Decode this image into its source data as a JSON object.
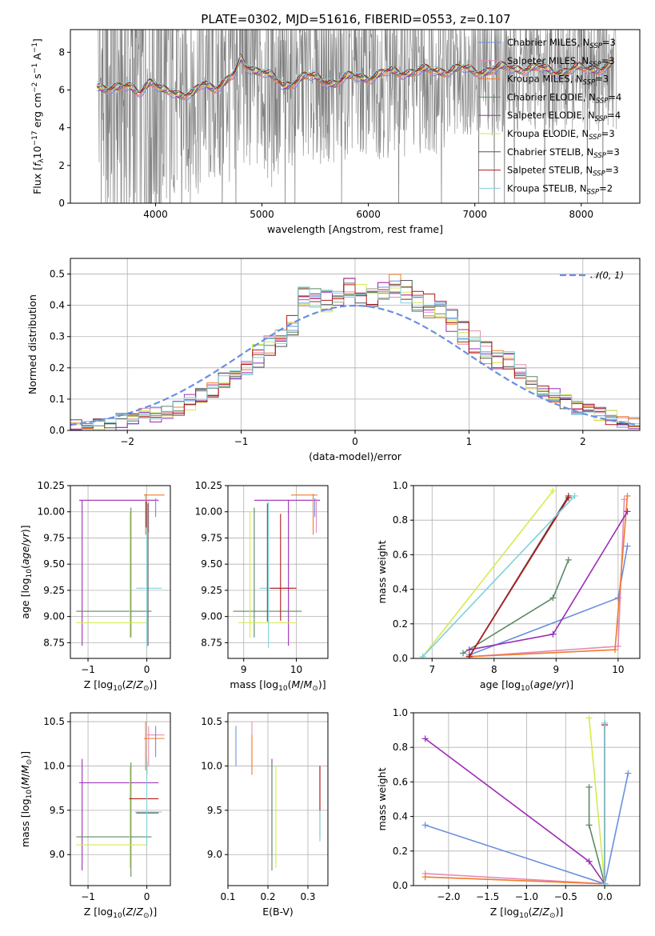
{
  "colors": {
    "Chabrier MILES": "#6a8fe0",
    "Salpeter MILES": "#e68bb7",
    "Kroupa MILES": "#f07b2a",
    "Chabrier ELODIE": "#5b8a64",
    "Salpeter ELODIE": "#9b2cb3",
    "Kroupa ELODIE": "#d6ea4e",
    "Chabrier STELIB": "#555555",
    "Salpeter STELIB": "#b21818",
    "Kroupa STELIB": "#7fd0da",
    "data": "#808080",
    "normal": "#6a8fe0"
  },
  "chart_data": [
    {
      "id": "spectrum",
      "type": "line",
      "title": "PLATE=0302, MJD=51616, FIBERID=0553, z=0.107",
      "xlabel": "wavelength [Angstrom, rest frame]",
      "ylabel": "Flux [f_λ 10^-17 erg cm^-2 s^-1 A^-1]",
      "xlim": [
        3200,
        8550
      ],
      "ylim": [
        0,
        9.2
      ],
      "xticks": [
        "4000",
        "5000",
        "6000",
        "7000",
        "8000"
      ],
      "yticks": [
        "0",
        "2",
        "4",
        "6",
        "8"
      ],
      "grid": false,
      "legend_position": "top-right",
      "legend": [
        {
          "label": "Chabrier MILES, N",
          "sub": "SSP",
          "eq": "=3"
        },
        {
          "label": "Salpeter MILES, N",
          "sub": "SSP",
          "eq": "=3"
        },
        {
          "label": "Kroupa MILES, N",
          "sub": "SSP",
          "eq": "=3"
        },
        {
          "label": "Chabrier ELODIE, N",
          "sub": "SSP",
          "eq": "=4"
        },
        {
          "label": "Salpeter ELODIE, N",
          "sub": "SSP",
          "eq": "=4"
        },
        {
          "label": "Kroupa ELODIE, N",
          "sub": "SSP",
          "eq": "=3"
        },
        {
          "label": "Chabrier STELIB, N",
          "sub": "SSP",
          "eq": "=3"
        },
        {
          "label": "Salpeter STELIB, N",
          "sub": "SSP",
          "eq": "=3"
        },
        {
          "label": "Kroupa STELIB, N",
          "sub": "SSP",
          "eq": "=2"
        }
      ],
      "model_continuum": [
        [
          3450,
          6.3
        ],
        [
          3550,
          6.1
        ],
        [
          3650,
          6.0
        ],
        [
          3750,
          6.2
        ],
        [
          3850,
          6.0
        ],
        [
          3950,
          6.4
        ],
        [
          4050,
          5.9
        ],
        [
          4150,
          6.0
        ],
        [
          4250,
          5.8
        ],
        [
          4350,
          5.7
        ],
        [
          4450,
          6.3
        ],
        [
          4550,
          6.2
        ],
        [
          4650,
          6.4
        ],
        [
          4750,
          6.8
        ],
        [
          4800,
          7.6
        ],
        [
          4850,
          7.3
        ],
        [
          4900,
          7.2
        ],
        [
          5000,
          7.0
        ],
        [
          5100,
          6.6
        ],
        [
          5200,
          6.2
        ],
        [
          5300,
          6.5
        ],
        [
          5400,
          6.7
        ],
        [
          5500,
          6.6
        ],
        [
          5600,
          6.5
        ],
        [
          5700,
          6.4
        ],
        [
          5800,
          6.6
        ],
        [
          5900,
          6.7
        ],
        [
          6000,
          6.7
        ],
        [
          6200,
          6.9
        ],
        [
          6400,
          7.0
        ],
        [
          6600,
          7.0
        ],
        [
          6800,
          7.1
        ],
        [
          7000,
          7.0
        ],
        [
          7200,
          7.1
        ],
        [
          7400,
          7.2
        ],
        [
          7600,
          7.1
        ],
        [
          7800,
          7.0
        ],
        [
          8000,
          7.1
        ],
        [
          8200,
          7.2
        ],
        [
          8300,
          7.3
        ]
      ]
    },
    {
      "id": "residuals",
      "type": "step",
      "xlabel": "(data-model)/error",
      "ylabel": "Normed distribution",
      "xlim": [
        -2.5,
        2.5
      ],
      "ylim": [
        0,
        0.55
      ],
      "xticks": [
        "−2",
        "−1",
        "0",
        "1",
        "2"
      ],
      "yticks": [
        "0.0",
        "0.1",
        "0.2",
        "0.3",
        "0.4",
        "0.5"
      ],
      "grid": true,
      "legend_position": "top-right",
      "legend_label": "𝒩(0, 1)",
      "bin_width": 0.1,
      "bin_start": -2.5,
      "values": [
        0.01,
        0.01,
        0.015,
        0.02,
        0.03,
        0.04,
        0.05,
        0.05,
        0.06,
        0.07,
        0.09,
        0.11,
        0.13,
        0.16,
        0.17,
        0.2,
        0.24,
        0.27,
        0.3,
        0.34,
        0.42,
        0.43,
        0.41,
        0.42,
        0.46,
        0.43,
        0.42,
        0.44,
        0.46,
        0.44,
        0.41,
        0.4,
        0.38,
        0.35,
        0.31,
        0.28,
        0.25,
        0.23,
        0.22,
        0.19,
        0.15,
        0.13,
        0.11,
        0.09,
        0.07,
        0.06,
        0.05,
        0.04,
        0.03,
        0.02
      ]
    },
    {
      "id": "age-vs-Z",
      "type": "errorbar",
      "xlabel": "Z [log10(Z/Z⊙)]",
      "ylabel": "age [log10(age/yr)]",
      "xlim": [
        -1.3,
        0.4
      ],
      "ylim": [
        8.6,
        10.25
      ],
      "xticks": [
        "−1",
        "0"
      ],
      "yticks": [
        "8.75",
        "9.00",
        "9.25",
        "9.50",
        "9.75",
        "10.00",
        "10.25"
      ],
      "grid": true
    },
    {
      "id": "age-vs-mass",
      "type": "errorbar",
      "xlabel": "mass [log10(M/M⊙)]",
      "ylabel": "",
      "xlim": [
        8.7,
        10.6
      ],
      "ylim": [
        8.6,
        10.25
      ],
      "xticks": [
        "8",
        "9",
        "10"
      ],
      "yticks": [
        "8.75",
        "9.00",
        "9.25",
        "9.50",
        "9.75",
        "10.00",
        "10.25"
      ],
      "grid": true
    },
    {
      "id": "weight-vs-age",
      "type": "line",
      "xlabel": "age [log10(age/yr)]",
      "ylabel": "mass weight",
      "xlim": [
        6.7,
        10.35
      ],
      "ylim": [
        0,
        1.0
      ],
      "xticks": [
        "7",
        "8",
        "9",
        "10"
      ],
      "yticks": [
        "0.0",
        "0.2",
        "0.4",
        "0.6",
        "0.8",
        "1.0"
      ],
      "grid": true,
      "series": [
        {
          "key": "Chabrier MILES",
          "x": [
            7.6,
            10.0,
            10.15
          ],
          "y": [
            0.02,
            0.35,
            0.65
          ]
        },
        {
          "key": "Salpeter MILES",
          "x": [
            7.6,
            10.0,
            10.1
          ],
          "y": [
            0.01,
            0.07,
            0.92
          ]
        },
        {
          "key": "Kroupa MILES",
          "x": [
            7.6,
            9.95,
            10.15
          ],
          "y": [
            0.01,
            0.05,
            0.94
          ]
        },
        {
          "key": "Chabrier ELODIE",
          "x": [
            7.5,
            8.95,
            9.2
          ],
          "y": [
            0.03,
            0.35,
            0.57
          ]
        },
        {
          "key": "Salpeter ELODIE",
          "x": [
            7.6,
            8.95,
            10.15
          ],
          "y": [
            0.05,
            0.14,
            0.85
          ]
        },
        {
          "key": "Kroupa ELODIE",
          "x": [
            6.85,
            8.95
          ],
          "y": [
            0.01,
            0.97
          ]
        },
        {
          "key": "Chabrier STELIB",
          "x": [
            7.6,
            9.2
          ],
          "y": [
            0.01,
            0.94
          ]
        },
        {
          "key": "Salpeter STELIB",
          "x": [
            7.6,
            9.2
          ],
          "y": [
            0.01,
            0.93
          ]
        },
        {
          "key": "Kroupa STELIB",
          "x": [
            6.85,
            9.3
          ],
          "y": [
            0.01,
            0.94
          ]
        }
      ]
    },
    {
      "id": "mass-vs-Z",
      "type": "errorbar",
      "xlabel": "Z [log10(Z/Z⊙)]",
      "ylabel": "mass [log10(M/M⊙)]",
      "xlim": [
        -1.3,
        0.4
      ],
      "ylim": [
        8.65,
        10.6
      ],
      "xticks": [
        "−1",
        "0"
      ],
      "yticks": [
        "9.0",
        "9.5",
        "10.0",
        "10.5"
      ],
      "grid": true
    },
    {
      "id": "mass-vs-EBV",
      "type": "errorbar",
      "xlabel": "E(B-V)",
      "ylabel": "",
      "xlim": [
        0.1,
        0.35
      ],
      "ylim": [
        8.65,
        10.6
      ],
      "xticks": [
        "0.1",
        "0.2",
        "0.3"
      ],
      "yticks": [
        "9.0",
        "9.5",
        "10.0",
        "10.5"
      ],
      "grid": true
    },
    {
      "id": "weight-vs-Z",
      "type": "line",
      "xlabel": "Z [log10(Z/Z⊙)]",
      "ylabel": "mass weight",
      "xlim": [
        -2.45,
        0.45
      ],
      "ylim": [
        0,
        1.0
      ],
      "xticks": [
        "−2.0",
        "−1.5",
        "−1.0",
        "−0.5",
        "0.0"
      ],
      "yticks": [
        "0.0",
        "0.2",
        "0.4",
        "0.6",
        "0.8",
        "1.0"
      ],
      "grid": true,
      "series": [
        {
          "key": "Chabrier MILES",
          "x": [
            -2.3,
            0.0,
            0.3
          ],
          "y": [
            0.35,
            0.01,
            0.65
          ]
        },
        {
          "key": "Salpeter MILES",
          "x": [
            -2.3,
            0.0
          ],
          "y": [
            0.07,
            0.01
          ]
        },
        {
          "key": "Kroupa MILES",
          "x": [
            -2.3,
            0.0
          ],
          "y": [
            0.05,
            0.01
          ]
        },
        {
          "key": "Chabrier ELODIE",
          "x": [
            -0.2,
            -0.2,
            0.0
          ],
          "y": [
            0.57,
            0.35,
            0.01
          ]
        },
        {
          "key": "Salpeter ELODIE",
          "x": [
            -2.3,
            -0.2,
            0.0
          ],
          "y": [
            0.85,
            0.14,
            0.01
          ]
        },
        {
          "key": "Kroupa ELODIE",
          "x": [
            -0.2,
            0.0
          ],
          "y": [
            0.97,
            0.01
          ]
        },
        {
          "key": "Chabrier STELIB",
          "x": [
            0.0,
            0.0
          ],
          "y": [
            0.94,
            0.01
          ]
        },
        {
          "key": "Salpeter STELIB",
          "x": [
            0.0,
            0.0
          ],
          "y": [
            0.93,
            0.01
          ]
        },
        {
          "key": "Kroupa STELIB",
          "x": [
            0.0,
            0.0
          ],
          "y": [
            0.94,
            0.01
          ]
        }
      ]
    }
  ]
}
